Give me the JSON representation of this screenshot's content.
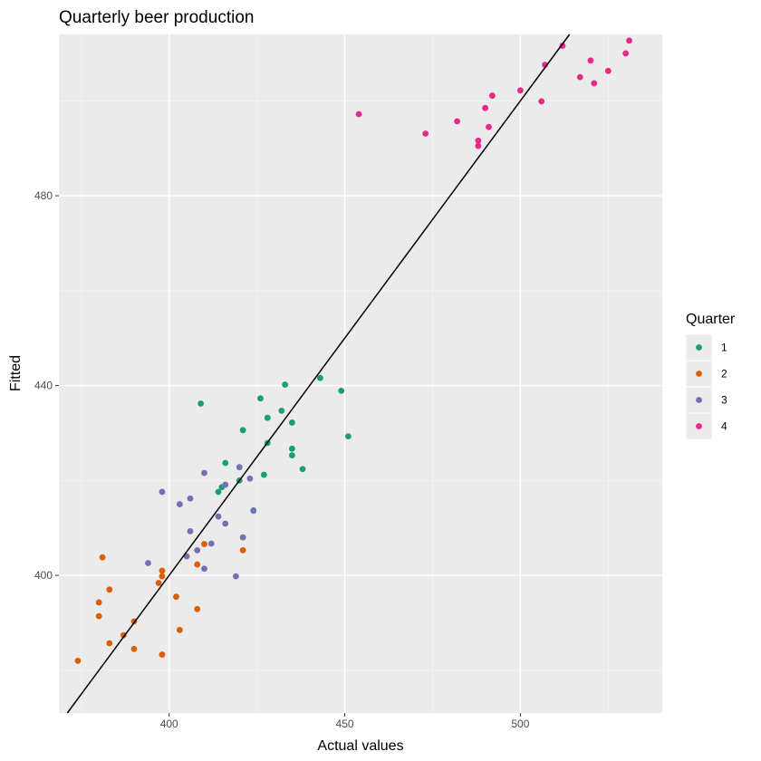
{
  "chart_data": {
    "type": "scatter",
    "title": "Quarterly beer production",
    "xlabel": "Actual values",
    "ylabel": "Fitted",
    "xlim": [
      368.6,
      540.4
    ],
    "ylim": [
      371.0,
      514.0
    ],
    "x_ticks": [
      400,
      450,
      500
    ],
    "y_ticks": [
      400,
      440,
      480
    ],
    "grid": true,
    "reference_line": {
      "description": "y = x",
      "slope": 1,
      "intercept": 0
    },
    "legend": {
      "title": "Quarter",
      "placement": "right"
    },
    "series": [
      {
        "name": "1",
        "color": "#1b9e77",
        "points": [
          [
            409,
            436.2
          ],
          [
            414,
            417.6
          ],
          [
            415,
            418.6
          ],
          [
            416,
            423.7
          ],
          [
            420,
            420.0
          ],
          [
            421,
            430.6
          ],
          [
            424,
            413.7
          ],
          [
            426,
            437.3
          ],
          [
            427,
            421.2
          ],
          [
            428,
            433.2
          ],
          [
            428,
            427.9
          ],
          [
            432,
            434.7
          ],
          [
            433,
            440.2
          ],
          [
            435,
            432.2
          ],
          [
            435,
            426.7
          ],
          [
            435,
            425.3
          ],
          [
            438,
            422.4
          ],
          [
            443,
            441.6
          ],
          [
            449,
            438.9
          ],
          [
            451,
            429.3
          ]
        ]
      },
      {
        "name": "2",
        "color": "#d95f02",
        "points": [
          [
            374,
            382.0
          ],
          [
            380,
            394.3
          ],
          [
            380,
            391.4
          ],
          [
            381,
            403.8
          ],
          [
            383,
            397.0
          ],
          [
            383,
            385.7
          ],
          [
            387,
            387.4
          ],
          [
            390,
            390.3
          ],
          [
            390,
            384.5
          ],
          [
            397,
            398.4
          ],
          [
            398,
            399.8
          ],
          [
            398,
            401.0
          ],
          [
            398,
            383.3
          ],
          [
            402,
            395.5
          ],
          [
            403,
            388.5
          ],
          [
            408,
            402.3
          ],
          [
            408,
            392.9
          ],
          [
            410,
            406.6
          ],
          [
            421,
            405.3
          ]
        ]
      },
      {
        "name": "3",
        "color": "#7570b3",
        "points": [
          [
            394,
            402.6
          ],
          [
            398,
            417.6
          ],
          [
            403,
            415.0
          ],
          [
            405,
            404.0
          ],
          [
            406,
            416.2
          ],
          [
            406,
            409.3
          ],
          [
            408,
            405.3
          ],
          [
            410,
            401.4
          ],
          [
            410,
            421.6
          ],
          [
            412,
            406.7
          ],
          [
            414,
            412.4
          ],
          [
            416,
            419.1
          ],
          [
            416,
            410.9
          ],
          [
            419,
            399.8
          ],
          [
            420,
            422.8
          ],
          [
            421,
            408.0
          ],
          [
            423,
            420.4
          ],
          [
            424,
            413.6
          ]
        ]
      },
      {
        "name": "4",
        "color": "#e7298a",
        "points": [
          [
            454,
            497.2
          ],
          [
            473,
            493.1
          ],
          [
            482,
            495.7
          ],
          [
            488,
            491.6
          ],
          [
            488,
            490.5
          ],
          [
            490,
            498.5
          ],
          [
            491,
            494.5
          ],
          [
            492,
            501.1
          ],
          [
            500,
            502.2
          ],
          [
            506,
            499.9
          ],
          [
            507,
            507.6
          ],
          [
            512,
            511.6
          ],
          [
            517,
            505.0
          ],
          [
            520,
            508.5
          ],
          [
            521,
            503.7
          ],
          [
            525,
            506.3
          ],
          [
            530,
            510.0
          ],
          [
            531,
            512.7
          ]
        ]
      }
    ]
  }
}
